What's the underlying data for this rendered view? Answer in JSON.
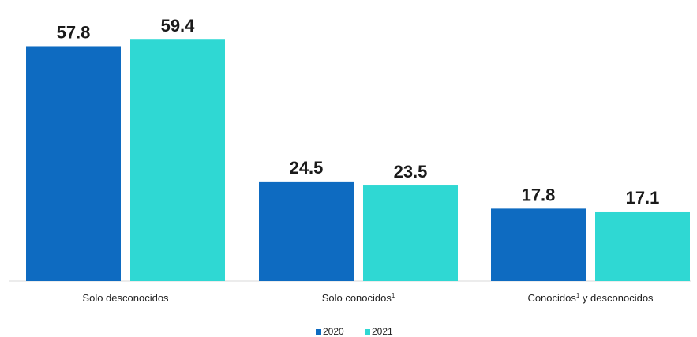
{
  "chart_data": {
    "type": "bar",
    "title": "",
    "xlabel": "",
    "ylabel": "",
    "ylim": [
      0,
      61
    ],
    "grid": false,
    "legend_position": "bottom",
    "categories": [
      {
        "label": "Solo desconocidos",
        "sup": "",
        "suffix": ""
      },
      {
        "label": "Solo conocidos",
        "sup": "1",
        "suffix": ""
      },
      {
        "label": "Conocidos",
        "sup": "1",
        "suffix": " y desconocidos"
      }
    ],
    "series": [
      {
        "name": "2020",
        "color": "#0e6bc1",
        "values": [
          57.8,
          24.5,
          17.8
        ]
      },
      {
        "name": "2021",
        "color": "#2fd8d3",
        "values": [
          59.4,
          23.5,
          17.1
        ]
      }
    ]
  }
}
